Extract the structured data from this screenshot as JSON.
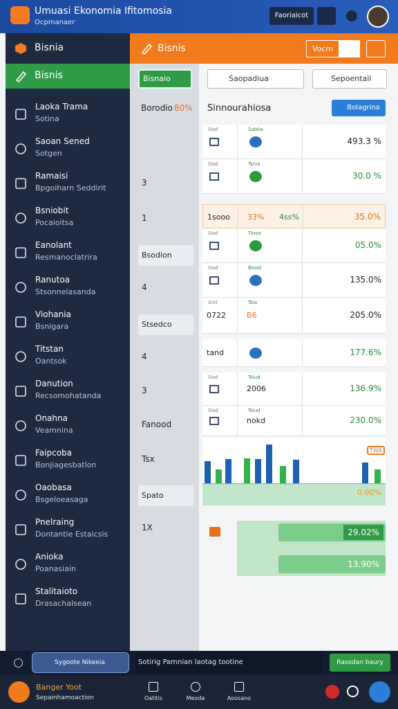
{
  "header": {
    "title": "Umuasi Ekonomia Ifitomosia",
    "subtitle": "Ocpmanaer",
    "button": "Faoriaicot"
  },
  "sidebar": {
    "brand": "Bisnia",
    "active": "Bisnis",
    "items": [
      {
        "title": "Laoka Trama",
        "subtitle": "Sotina"
      },
      {
        "title": "Saoan Sened",
        "subtitle": "Sotgen"
      },
      {
        "title": "Ramaisi",
        "subtitle": "Bpgoiharn Seddirit"
      },
      {
        "title": "Bsniobit",
        "subtitle": "Pocaioitsa"
      },
      {
        "title": "Eanolant",
        "subtitle": "Resmanoclatrira"
      },
      {
        "title": "Ranutoa",
        "subtitle": "Stsonnelasanda"
      },
      {
        "title": "Viohania",
        "subtitle": "Bsnigara"
      },
      {
        "title": "Titstan",
        "subtitle": "Oantsok"
      },
      {
        "title": "Danution",
        "subtitle": "Recsomohatanda"
      },
      {
        "title": "Onahna",
        "subtitle": "Veamnina"
      },
      {
        "title": "Faipcoba",
        "subtitle": "Bonjiagesbatlon"
      },
      {
        "title": "Oaobasa",
        "subtitle": "Bsgeloeasaga"
      },
      {
        "title": "Pnelraing",
        "subtitle": "Dontantie Estaicsis"
      },
      {
        "title": "Anioka",
        "subtitle": "Poanasiain"
      },
      {
        "title": "Stalitaioto",
        "subtitle": "Drasachalsean"
      }
    ]
  },
  "toolbar": {
    "title": "Bisnis",
    "button": "Vocm"
  },
  "filter": {
    "dropdown": "Bisnaio",
    "heading": "Borodio",
    "heading_pct": "80%",
    "labels": [
      "3",
      "1",
      "4",
      "4",
      "3",
      "Fanood",
      "Tsx",
      "1X"
    ],
    "buttons": [
      "Bsodion",
      "Stsedco",
      "Spato"
    ]
  },
  "main": {
    "search": "Saopadiua",
    "select": "Sepoentail",
    "title": "Sinnourahiosa",
    "button": "Bolagrina",
    "rows": [
      {
        "k1": "Sisd",
        "k2": "Sabiia",
        "value": "493.3 %"
      },
      {
        "k1": "Sisd",
        "k2": "Tsnia",
        "value": "30.0 %"
      },
      {
        "c1": "1sooo",
        "c2": "33%",
        "c3": "4ss%",
        "value": "35.0%"
      },
      {
        "k1": "Sisd",
        "k2": "Tiooo",
        "value": "05.0%"
      },
      {
        "k1": "Sisd",
        "k2": "Bsoid",
        "value": "135.0%"
      },
      {
        "k1": "Snd",
        "k2": "Tsia",
        "c1": "0722",
        "c2": "B6",
        "value": "205.0%"
      },
      {
        "c1": "tand",
        "value": "177.6%"
      },
      {
        "k1": "Sisd",
        "k2": "Tsiud",
        "c2": "2006",
        "value": "136.9%"
      },
      {
        "k1": "Sisd",
        "k2": "Tsiud",
        "c2": "nokd",
        "value": "230.0%"
      }
    ],
    "chart": {
      "values": [
        32,
        20,
        35,
        36,
        35,
        56,
        25,
        34,
        30,
        20
      ]
    },
    "badge": "TWA",
    "chart_label": "0.00%",
    "results": [
      "29.02%",
      "13.90%"
    ]
  },
  "footer": {
    "dropdown": "Sygoote Nikeeia",
    "message": "Sotirig Pamnian laotag tootine",
    "button": "Rasodan baury"
  },
  "nav": {
    "title": "Banger Yoot",
    "subtitle": "Sepainhamoaction",
    "items": [
      "Oatitis",
      "Meoda",
      "Aoosano"
    ]
  }
}
